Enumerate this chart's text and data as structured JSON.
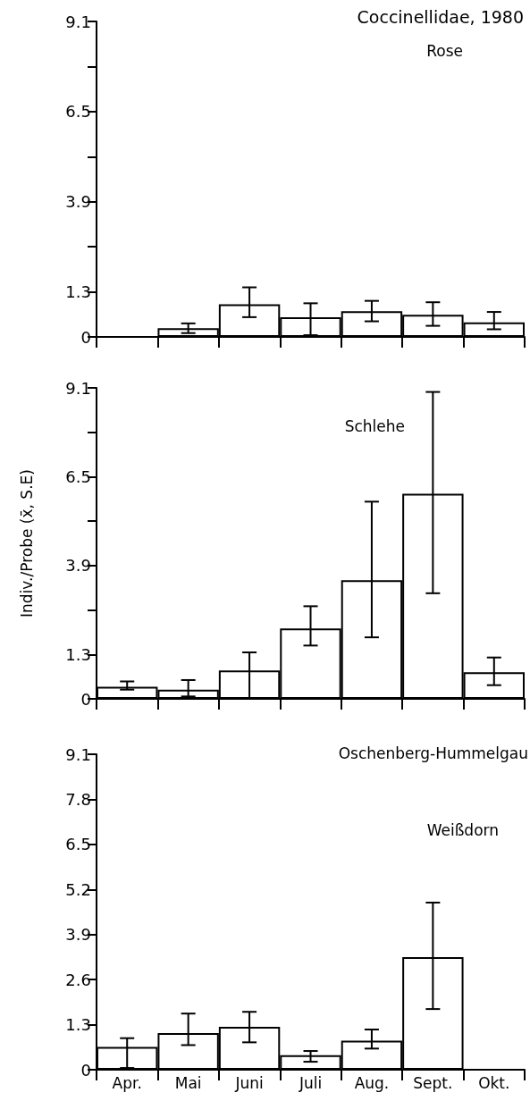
{
  "chart_data": [
    {
      "type": "bar",
      "title": "Coccinellidae, 1980",
      "annotations": [
        "Rose"
      ],
      "categories": [
        null,
        null,
        null,
        null,
        null,
        null,
        null
      ],
      "series": [
        {
          "color": "#ffffff",
          "values": [
            null,
            0.25,
            0.94,
            0.57,
            0.74,
            0.64,
            0.42
          ],
          "errors": [
            null,
            [
              0.11,
              0.39
            ],
            [
              0.57,
              1.43
            ],
            [
              0.05,
              0.97
            ],
            [
              0.45,
              1.04
            ],
            [
              0.32,
              1.0
            ],
            [
              0.22,
              0.72
            ]
          ]
        }
      ],
      "ylim": [
        0,
        9.1
      ],
      "yticks": [
        0,
        1.3,
        {
          "value": 2.6,
          "label": null
        },
        3.9,
        {
          "value": 5.2,
          "label": null
        },
        6.5,
        {
          "value": 7.8,
          "label": null
        },
        9.1
      ],
      "tick_labels": "y",
      "grid": false
    },
    {
      "type": "bar",
      "ylabel": "Indiv./Probe (x̄, S.E)",
      "annotations": [
        "Schlehe"
      ],
      "categories": [
        null,
        null,
        null,
        null,
        null,
        null,
        null
      ],
      "series": [
        {
          "color": "#ffffff",
          "values": [
            0.35,
            0.27,
            0.83,
            2.06,
            3.47,
            6.0,
            0.78
          ],
          "errors": [
            [
              0.27,
              0.51
            ],
            [
              0.07,
              0.55
            ],
            [
              0.0,
              1.36
            ],
            [
              1.56,
              2.71
            ],
            [
              1.8,
              5.77
            ],
            [
              3.09,
              8.98
            ],
            [
              0.4,
              1.21
            ]
          ]
        }
      ],
      "ylim": [
        0,
        9.1
      ],
      "yticks": [
        0,
        1.3,
        {
          "value": 2.6,
          "label": null
        },
        3.9,
        {
          "value": 5.2,
          "label": null
        },
        6.5,
        {
          "value": 7.8,
          "label": null
        },
        9.1
      ],
      "tick_labels": "y",
      "grid": false
    },
    {
      "type": "bar",
      "annotations": [
        "Oschenberg-Hummelgau",
        "Weißdorn"
      ],
      "categories": [
        "Apr.",
        "Mai",
        "Juni",
        "Juli",
        "Aug.",
        "Sept.",
        "Okt."
      ],
      "series": [
        {
          "color": "#ffffff",
          "values": [
            0.66,
            1.06,
            1.24,
            0.42,
            0.84,
            3.25,
            null
          ],
          "errors": [
            [
              0.05,
              0.91
            ],
            [
              0.71,
              1.62
            ],
            [
              0.79,
              1.67
            ],
            [
              0.23,
              0.54
            ],
            [
              0.61,
              1.16
            ],
            [
              1.75,
              4.82
            ],
            null
          ]
        }
      ],
      "ylim": [
        0,
        9.1
      ],
      "yticks": [
        0,
        1.3,
        2.6,
        3.9,
        5.2,
        6.5,
        7.8,
        9.1
      ],
      "grid": false
    }
  ]
}
